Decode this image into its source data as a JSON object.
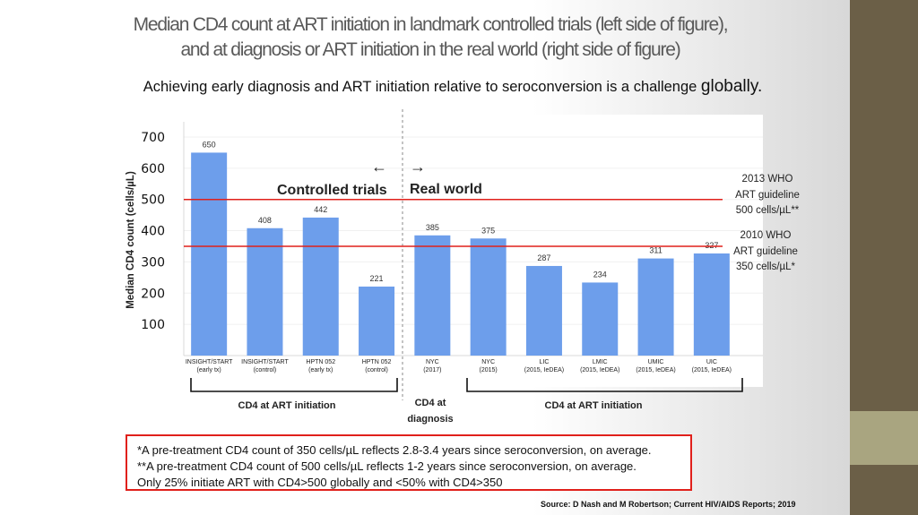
{
  "title_line1": "Median CD4 count at ART initiation in landmark controlled trials (left side of figure),",
  "title_line2": "and at diagnosis or ART initiation in the real world (right side of figure)",
  "subtitle_main": "Achieving early diagnosis and ART initiation relative to seroconversion is a challenge ",
  "subtitle_emph": "globally.",
  "zones": {
    "left_arrow": "←",
    "right_arrow": "→",
    "left_label": "Controlled trials",
    "right_label": "Real world"
  },
  "guidelines": {
    "who2013": [
      "2013 WHO",
      "ART guideline",
      "500 cells/µL**"
    ],
    "who2010": [
      "2010 WHO",
      "ART guideline",
      "350 cells/µL*"
    ]
  },
  "groups": {
    "left": "CD4 at ART initiation",
    "middle_line1": "CD4 at",
    "middle_line2": "diagnosis",
    "right": "CD4 at ART initiation"
  },
  "notes": [
    "*A pre-treatment CD4 count of 350 cells/µL reflects 2.8-3.4 years since seroconversion, on average.",
    "**A pre-treatment CD4 count of 500 cells/µL reflects 1-2 years since seroconversion, on average.",
    "Only 25% initiate ART with CD4>500 globally and <50% with CD4>350"
  ],
  "source": "Source: D Nash and M Robertson; Current HIV/AIDS Reports; 2019",
  "colors": {
    "bar": "#6d9eeb",
    "guideline": "#e0201b"
  },
  "chart_data": {
    "type": "bar",
    "ylabel": "Median CD4 count (cells/µL)",
    "ylim": [
      0,
      700
    ],
    "yticks": [
      100,
      200,
      300,
      400,
      500,
      600,
      700
    ],
    "grid": true,
    "categories": [
      [
        "INSIGHT/START",
        "(early tx)"
      ],
      [
        "INSIGHT/START",
        "(control)"
      ],
      [
        "HPTN 052",
        "(early tx)"
      ],
      [
        "HPTN 052",
        "(control)"
      ],
      [
        "NYC",
        "(2017)"
      ],
      [
        "NYC",
        "(2015)"
      ],
      [
        "LIC",
        "(2015, IeDEA)"
      ],
      [
        "LMIC",
        "(2015, IeDEA)"
      ],
      [
        "UMIC",
        "(2015, IeDEA)"
      ],
      [
        "UIC",
        "(2015, IeDEA)"
      ]
    ],
    "values": [
      650,
      408,
      442,
      221,
      385,
      375,
      287,
      234,
      311,
      327
    ],
    "reference_lines": [
      500,
      350
    ]
  }
}
